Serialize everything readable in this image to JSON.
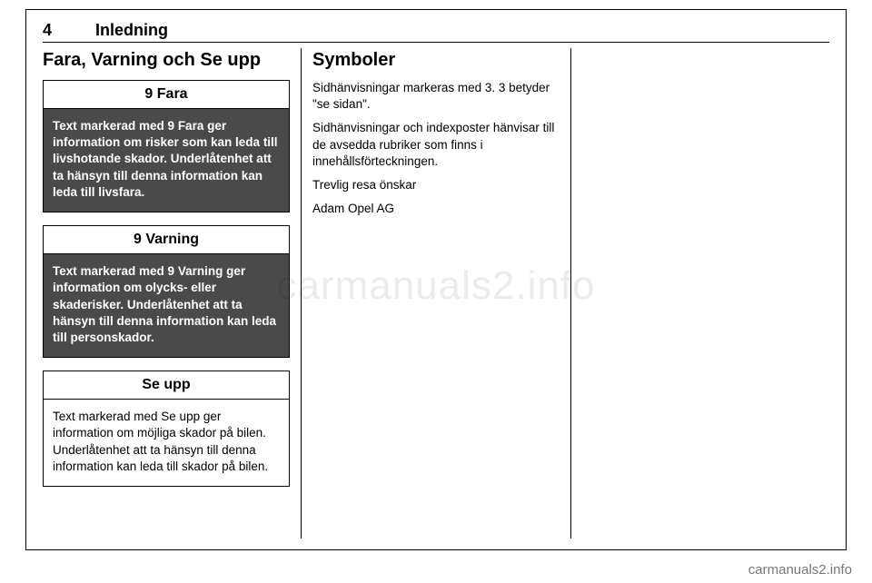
{
  "page": {
    "number": "4",
    "chapter": "Inledning"
  },
  "col1": {
    "heading": "Fara, Varning och Se upp",
    "fara": {
      "title": "9 Fara",
      "body": "Text markerad med 9 Fara ger information om risker som kan leda till livshotande skador. Underlåtenhet att ta hänsyn till denna information kan leda till livsfara."
    },
    "varning": {
      "title": "9 Varning",
      "body": "Text markerad med 9 Varning ger information om olycks- eller skaderisker. Underlåtenhet att ta hänsyn till denna information kan leda till personskador."
    },
    "seupp": {
      "title": "Se upp",
      "body": "Text markerad med Se upp ger information om möjliga skador på bilen. Underlåtenhet att ta hänsyn till denna information kan leda till skador på bilen."
    }
  },
  "col2": {
    "heading": "Symboler",
    "p1": "Sidhänvisningar markeras med 3. 3 betyder \"se sidan\".",
    "p2": "Sidhänvisningar och indexposter hänvisar till de avsedda rubriker som finns i innehållsförteckningen.",
    "p3": "Trevlig resa önskar",
    "p4": "Adam Opel AG"
  },
  "watermark": "carmanuals2.info",
  "footer": "carmanuals2.info"
}
